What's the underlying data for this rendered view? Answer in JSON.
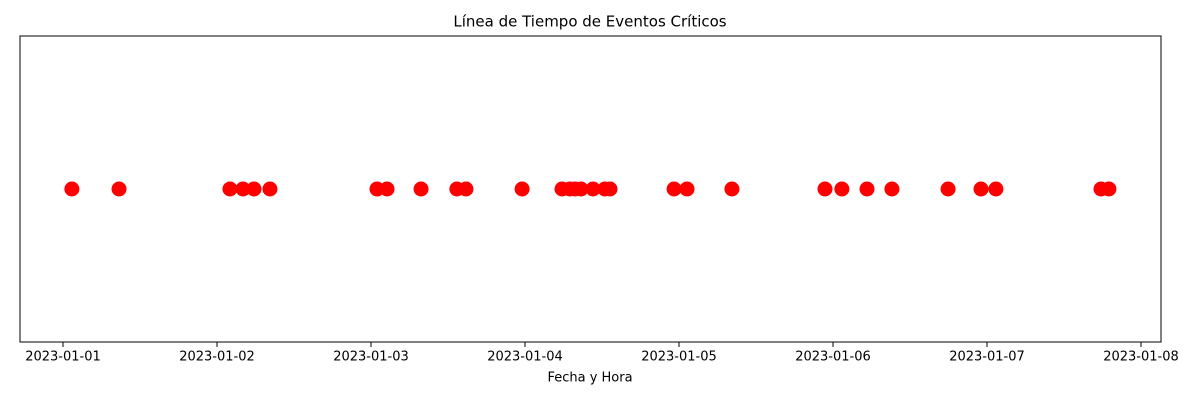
{
  "chart_data": {
    "type": "scatter",
    "title": "Línea de Tiempo de Eventos Críticos",
    "xlabel": "Fecha y Hora",
    "color": "#ff0000",
    "x": [
      "2023-01-01 01:23",
      "2023-01-01 08:44",
      "2023-01-02 02:01",
      "2023-01-02 04:03",
      "2023-01-02 05:46",
      "2023-01-02 08:15",
      "2023-01-03 00:56",
      "2023-01-03 02:30",
      "2023-01-03 07:48",
      "2023-01-03 13:23",
      "2023-01-03 14:48",
      "2023-01-03 23:33",
      "2023-01-04 05:46",
      "2023-01-04 07:00",
      "2023-01-04 07:48",
      "2023-01-04 08:44",
      "2023-01-04 10:36",
      "2023-01-04 12:27",
      "2023-01-04 13:15",
      "2023-01-04 23:14",
      "2023-01-05 01:15",
      "2023-01-05 08:15",
      "2023-01-05 22:45",
      "2023-01-06 01:23",
      "2023-01-06 05:18",
      "2023-01-06 09:11",
      "2023-01-06 17:56",
      "2023-01-06 23:04",
      "2023-01-07 01:23",
      "2023-01-07 17:46",
      "2023-01-07 19:00"
    ],
    "xlim": [
      "2022-12-31 17:18",
      "2023-01-08 03:07"
    ],
    "xticks": [
      "2023-01-01",
      "2023-01-02",
      "2023-01-03",
      "2023-01-04",
      "2023-01-05",
      "2023-01-06",
      "2023-01-07",
      "2023-01-08"
    ]
  }
}
